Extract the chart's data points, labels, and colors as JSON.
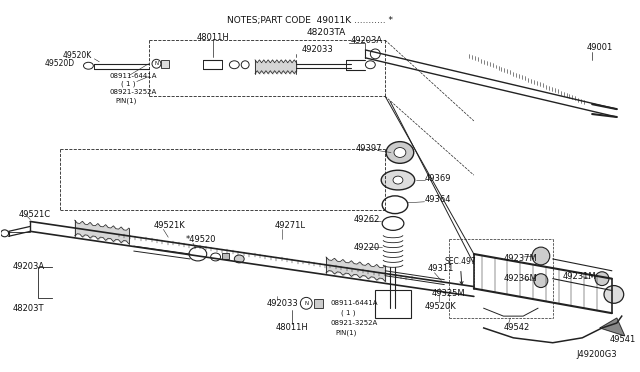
{
  "bg_color": "#ffffff",
  "diagram_id": "J49200G3",
  "notes_text": "NOTES;PART CODE  49011K ........... *",
  "sub_note": "48203TA",
  "fig_width": 6.4,
  "fig_height": 3.72,
  "dpi": 100,
  "line_color": "#222222",
  "text_color": "#111111"
}
